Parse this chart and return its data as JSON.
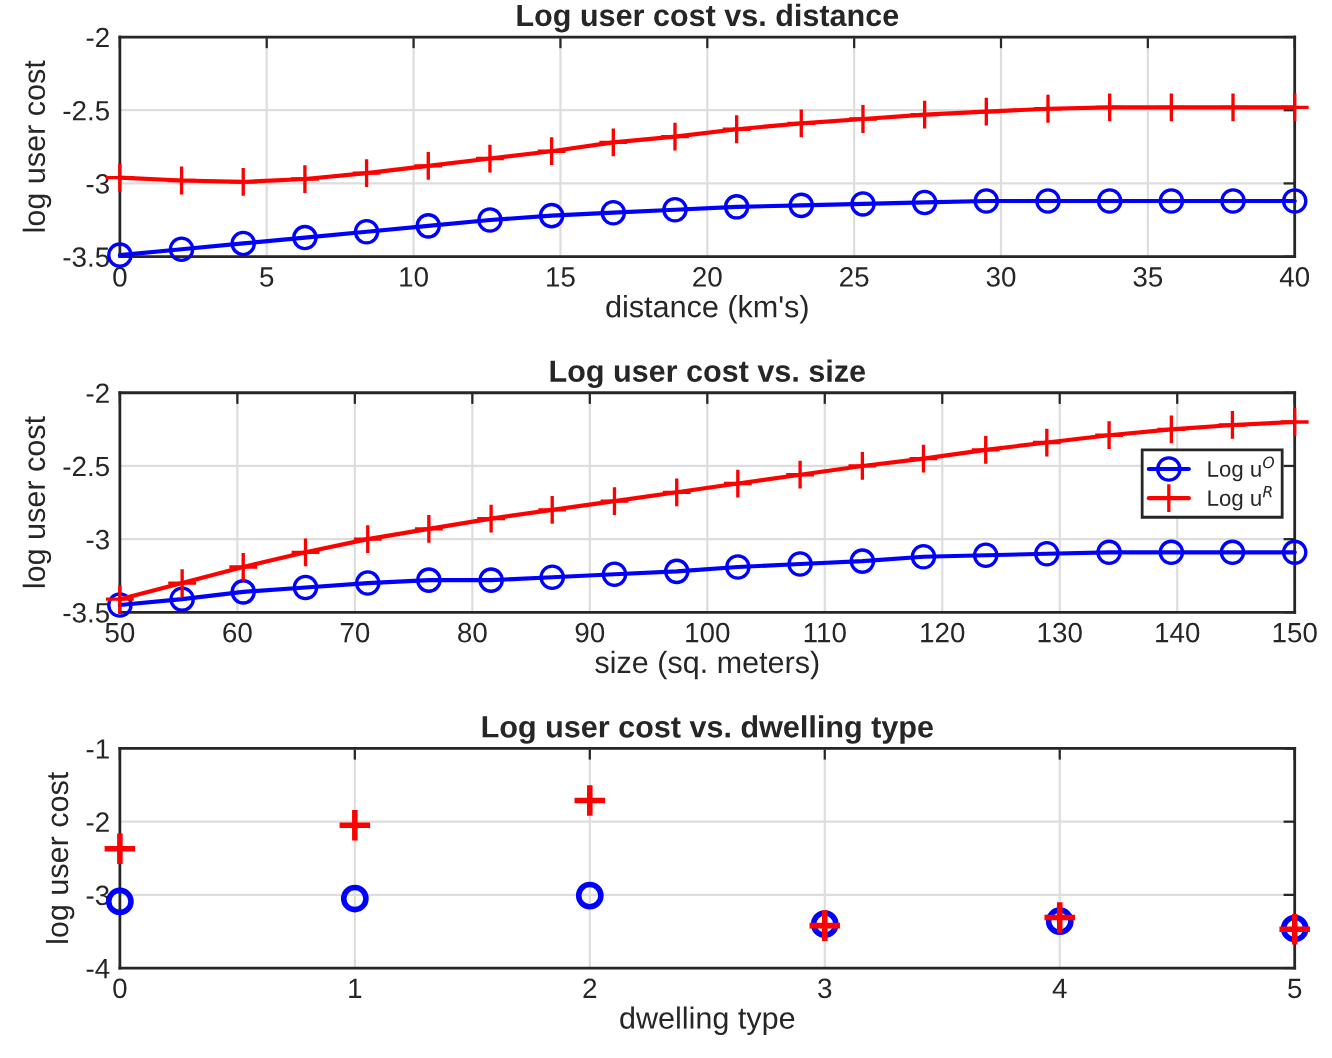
{
  "chart_data": [
    {
      "type": "line",
      "title": "Log user cost vs. distance",
      "xlabel": "distance (km's)",
      "ylabel": "log user cost",
      "x": [
        0,
        2.1,
        4.2,
        6.3,
        8.4,
        10.5,
        12.6,
        14.7,
        16.8,
        18.9,
        21,
        23.2,
        25.3,
        27.4,
        29.5,
        31.6,
        33.7,
        35.8,
        37.9,
        40
      ],
      "xlim": [
        0,
        40
      ],
      "xticks": [
        0,
        5,
        10,
        15,
        20,
        25,
        30,
        35,
        40
      ],
      "ylim": [
        -3.5,
        -2
      ],
      "yticks": [
        -3.5,
        -3,
        -2.5,
        -2
      ],
      "grid": true,
      "legend": false,
      "series": [
        {
          "color": "#0000ff",
          "marker": "circle",
          "values": [
            -3.49,
            -3.45,
            -3.41,
            -3.37,
            -3.33,
            -3.29,
            -3.25,
            -3.22,
            -3.2,
            -3.18,
            -3.16,
            -3.15,
            -3.14,
            -3.13,
            -3.12,
            -3.12,
            -3.12,
            -3.12,
            -3.12,
            -3.12
          ]
        },
        {
          "color": "#ff0000",
          "marker": "cross",
          "values": [
            -2.96,
            -2.98,
            -2.99,
            -2.97,
            -2.93,
            -2.88,
            -2.83,
            -2.78,
            -2.72,
            -2.68,
            -2.63,
            -2.59,
            -2.56,
            -2.53,
            -2.51,
            -2.49,
            -2.48,
            -2.48,
            -2.48,
            -2.48
          ]
        }
      ]
    },
    {
      "type": "line",
      "title": "Log user cost vs. size",
      "xlabel": "size (sq. meters)",
      "ylabel": "log user cost",
      "x": [
        50,
        55.3,
        60.5,
        65.8,
        71.1,
        76.3,
        81.6,
        86.8,
        92.1,
        97.4,
        102.6,
        107.9,
        113.2,
        118.4,
        123.7,
        128.9,
        134.2,
        139.5,
        144.7,
        150
      ],
      "xlim": [
        50,
        150
      ],
      "xticks": [
        50,
        60,
        70,
        80,
        90,
        100,
        110,
        120,
        130,
        140,
        150
      ],
      "ylim": [
        -3.5,
        -2
      ],
      "yticks": [
        -3.5,
        -3,
        -2.5,
        -2
      ],
      "grid": true,
      "legend": "top right",
      "series": [
        {
          "name": "Log u$^{O}$",
          "color": "#0000ff",
          "marker": "circle",
          "values": [
            -3.45,
            -3.41,
            -3.36,
            -3.33,
            -3.3,
            -3.28,
            -3.28,
            -3.26,
            -3.24,
            -3.22,
            -3.19,
            -3.17,
            -3.15,
            -3.12,
            -3.11,
            -3.1,
            -3.09,
            -3.09,
            -3.09,
            -3.09
          ]
        },
        {
          "name": "Log u$^{R}$",
          "color": "#ff0000",
          "marker": "cross",
          "values": [
            -3.41,
            -3.3,
            -3.19,
            -3.09,
            -3.0,
            -2.93,
            -2.86,
            -2.8,
            -2.74,
            -2.68,
            -2.62,
            -2.56,
            -2.5,
            -2.45,
            -2.39,
            -2.34,
            -2.29,
            -2.25,
            -2.22,
            -2.2
          ]
        }
      ]
    },
    {
      "type": "scatter",
      "title": "Log user cost vs. dwelling type",
      "xlabel": "dwelling type",
      "ylabel": "log user cost",
      "x": [
        0,
        1,
        2,
        3,
        4,
        5
      ],
      "xlim": [
        0,
        5
      ],
      "xticks": [
        0,
        1,
        2,
        3,
        4,
        5
      ],
      "ylim": [
        -4,
        -1
      ],
      "yticks": [
        -4,
        -3,
        -2,
        -1
      ],
      "grid": true,
      "legend": false,
      "series": [
        {
          "color": "#0000ff",
          "marker": "circle",
          "values": [
            -3.09,
            -3.05,
            -3.01,
            -3.4,
            -3.36,
            -3.46
          ]
        },
        {
          "color": "#ff0000",
          "marker": "cross",
          "values": [
            -2.37,
            -2.05,
            -1.71,
            -3.42,
            -3.31,
            -3.47
          ]
        }
      ]
    }
  ]
}
